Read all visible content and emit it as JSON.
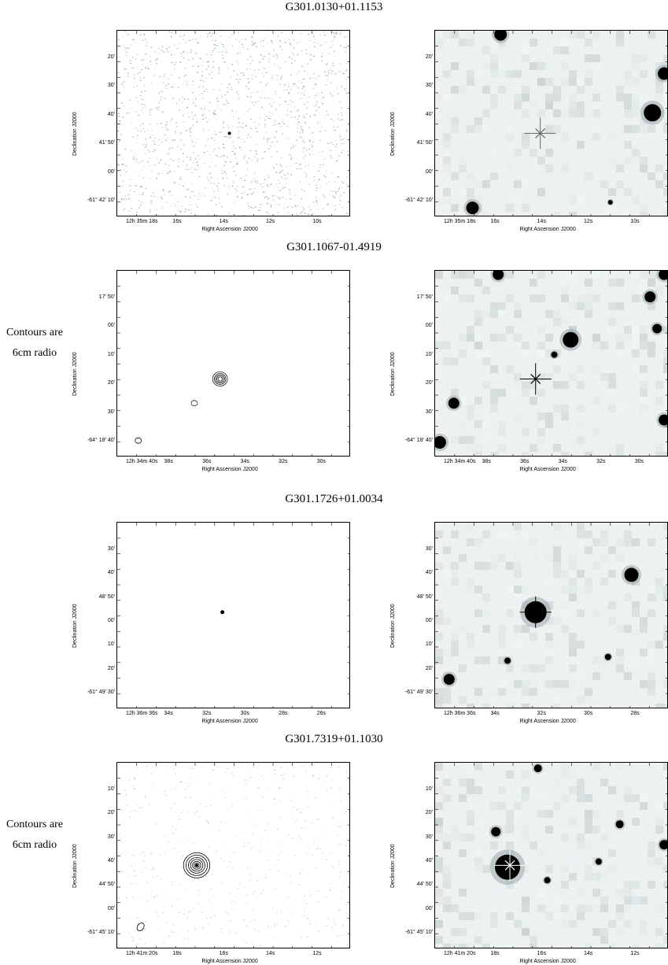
{
  "side_note": {
    "line1": "Contours are",
    "line2": "6cm radio"
  },
  "rows": [
    {
      "title": "G301.0130+01.1153",
      "show_note": false,
      "left_panel": {
        "type": "noise-speckle",
        "y_ticks": [
          "20'",
          "30'",
          "40'",
          "41' 50'",
          "00'",
          "-61° 42' 10'"
        ],
        "x_ticks": [
          "12h 35m 18s",
          "16s",
          "14s",
          "12s",
          "10s"
        ],
        "y_axis": "Declination J2000",
        "x_axis": "Right Ascension J2000"
      },
      "right_panel": {
        "y_ticks": [
          "20'",
          "30'",
          "40'",
          "41' 50'",
          "00'",
          "-61° 42' 10'"
        ],
        "x_ticks": [
          "12h 35m 18s",
          "16s",
          "14s",
          "12s",
          "10s"
        ],
        "y_axis": "Declination J2000",
        "x_axis": "Right Ascension J2000",
        "marker_color": "#666666"
      }
    },
    {
      "title": "G301.1067-01.4919",
      "show_note": true,
      "left_panel": {
        "type": "contours",
        "y_ticks": [
          "17' 50'",
          "00'",
          "10'",
          "20'",
          "30'",
          "-64° 18' 40'"
        ],
        "x_ticks": [
          "12h 34m 40s",
          "38s",
          "36s",
          "34s",
          "32s",
          "30s"
        ],
        "y_axis": "Declination J2000",
        "x_axis": "Right Ascension J2000"
      },
      "right_panel": {
        "y_ticks": [
          "17' 50'",
          "00'",
          "10'",
          "20'",
          "30'",
          "-64° 18' 40'"
        ],
        "x_ticks": [
          "12h 34m 40s",
          "38s",
          "36s",
          "34s",
          "32s",
          "30s"
        ],
        "y_axis": "Declination J2000",
        "x_axis": "Right Ascension J2000",
        "marker_color": "#000000"
      }
    },
    {
      "title": "G301.1726+01.0034",
      "show_note": false,
      "left_panel": {
        "type": "point",
        "y_ticks": [
          "30'",
          "40'",
          "48' 50'",
          "00'",
          "10'",
          "20'",
          "-61° 49' 30'"
        ],
        "x_ticks": [
          "12h 36m 36s",
          "34s",
          "32s",
          "30s",
          "28s",
          "26s"
        ],
        "y_axis": "Declination J2000",
        "x_axis": "Right Ascension J2000"
      },
      "right_panel": {
        "y_ticks": [
          "30'",
          "40'",
          "48' 50'",
          "00'",
          "10'",
          "20'",
          "-61° 49' 30'"
        ],
        "x_ticks": [
          "12h 36m 36s",
          "34s",
          "32s",
          "30s",
          "28s"
        ],
        "y_axis": "Declination J2000",
        "x_axis": "Right Ascension J2000",
        "marker_color": "#000000"
      }
    },
    {
      "title": "G301.7319+01.1030",
      "show_note": true,
      "left_panel": {
        "type": "contours-noise",
        "y_ticks": [
          "10'",
          "20'",
          "30'",
          "40'",
          "44' 50'",
          "00'",
          "-61° 45' 10'"
        ],
        "x_ticks": [
          "12h 41m 20s",
          "18s",
          "16s",
          "14s",
          "12s"
        ],
        "y_axis": "Declination J2000",
        "x_axis": "Right Ascension J2000"
      },
      "right_panel": {
        "y_ticks": [
          "10'",
          "20'",
          "30'",
          "40'",
          "44' 50'",
          "00'",
          "-61° 45' 10'"
        ],
        "x_ticks": [
          "12h 41m 20s",
          "18s",
          "16s",
          "14s",
          "12s"
        ],
        "y_axis": "Declination J2000",
        "x_axis": "Right Ascension J2000",
        "marker_color": "#ffffff"
      }
    }
  ]
}
